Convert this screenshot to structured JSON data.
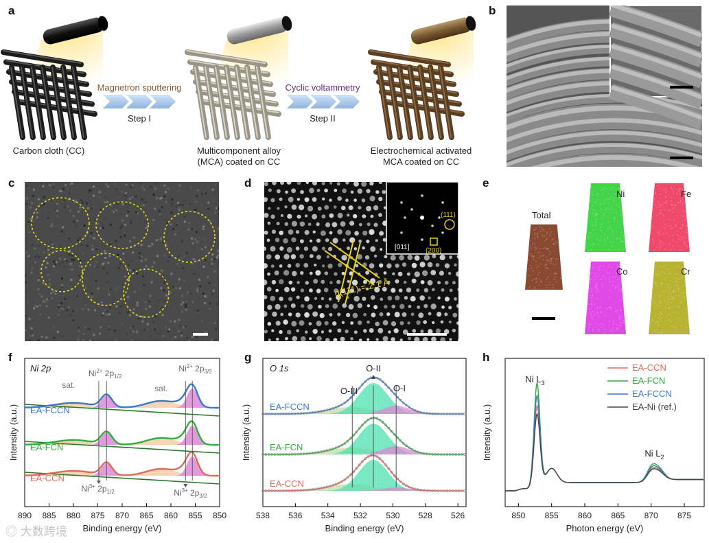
{
  "panel_labels": {
    "a": "a",
    "b": "b",
    "c": "c",
    "d": "d",
    "e": "e",
    "f": "f",
    "g": "g",
    "h": "h"
  },
  "panel_a": {
    "step1_method": "Magnetron sputtering",
    "step1_label": "Step I",
    "step2_method": "Cyclic voltammetry",
    "step2_label": "Step II",
    "material1": "Carbon cloth (CC)",
    "material2_line1": "Multicomponent alloy",
    "material2_line2": "(MCA) coated on CC",
    "material3_line1": "Electrochemical activated",
    "material3_line2": "MCA coated on CC",
    "colors": {
      "step1": "#8a5a32",
      "step2": "#6a2a8a"
    }
  },
  "panel_d": {
    "lattice_label": "d(111) = 2.1 Å",
    "fft_labels": {
      "plane111": "(111)",
      "zone": "[011]",
      "plane200": "(200)"
    }
  },
  "panel_e": {
    "elements": [
      {
        "name": "Total",
        "color": "#8a4a32"
      },
      {
        "name": "Ni",
        "color": "#44d44a"
      },
      {
        "name": "Fe",
        "color": "#ef4a6a"
      },
      {
        "name": "Co",
        "color": "#e24ae8"
      },
      {
        "name": "Cr",
        "color": "#b8b432"
      }
    ]
  },
  "chart_data": [
    {
      "type": "line",
      "panel": "f",
      "title": "Ni 2p",
      "xlabel": "Binding energy (eV)",
      "ylabel": "Intensity (a.u.)",
      "xlim": [
        890,
        850
      ],
      "xticks": [
        890,
        885,
        880,
        875,
        870,
        865,
        860,
        855,
        850
      ],
      "series": [
        {
          "name": "EA-FCCN",
          "color": "#3a78c8"
        },
        {
          "name": "EA-FCN",
          "color": "#2fae3e"
        },
        {
          "name": "EA-CCN",
          "color": "#e06a5a"
        }
      ],
      "annotations": {
        "sat1": "sat.",
        "sat2": "sat.",
        "ni2_half_base": "Ni",
        "ni2_half_sup": "2+",
        "ni2_half_main": " 2p",
        "ni2_half_sub": "1/2",
        "ni2_three_base": "Ni",
        "ni2_three_sup": "2+",
        "ni2_three_main": " 2p",
        "ni2_three_sub": "3/2",
        "ni3_half_base": "Ni",
        "ni3_half_sup": "3+",
        "ni3_half_main": " 2p",
        "ni3_half_sub": "1/2",
        "ni3_three_base": "Ni",
        "ni3_three_sup": "3+",
        "ni3_three_main": " 2p",
        "ni3_three_sub": "3/2"
      }
    },
    {
      "type": "line",
      "panel": "g",
      "title": "O 1s",
      "xlabel": "Binding energy (eV)",
      "ylabel": "Intensity (a.u.)",
      "xlim": [
        538,
        525.5
      ],
      "xticks": [
        538,
        536,
        534,
        532,
        530,
        528,
        526
      ],
      "series": [
        {
          "name": "EA-FCCN",
          "color": "#3a78c8"
        },
        {
          "name": "EA-FCN",
          "color": "#2fae3e"
        },
        {
          "name": "EA-CCN",
          "color": "#e06a5a"
        }
      ],
      "annotations": {
        "o3": "O-III",
        "o2": "O-II",
        "o1": "O-I"
      }
    },
    {
      "type": "line",
      "panel": "h",
      "xlabel": "Photon energy (eV)",
      "ylabel": "Intensity (a.u.)",
      "xlim": [
        848,
        878
      ],
      "xticks": [
        850,
        855,
        860,
        865,
        870,
        875
      ],
      "series": [
        {
          "name": "EA-CCN",
          "color": "#e06a5a",
          "l3_peak": 0.78
        },
        {
          "name": "EA-FCN",
          "color": "#2fae3e",
          "l3_peak": 1.0
        },
        {
          "name": "EA-FCCN",
          "color": "#3a78c8",
          "l3_peak": 0.88
        },
        {
          "name": "EA-Ni (ref.)",
          "color": "#444444",
          "l3_peak": 0.7
        }
      ],
      "annotations": {
        "l3_base": "Ni L",
        "l3_sub": "3",
        "l2_base": "Ni L",
        "l2_sub": "2"
      }
    }
  ],
  "watermark": "大数跨境"
}
